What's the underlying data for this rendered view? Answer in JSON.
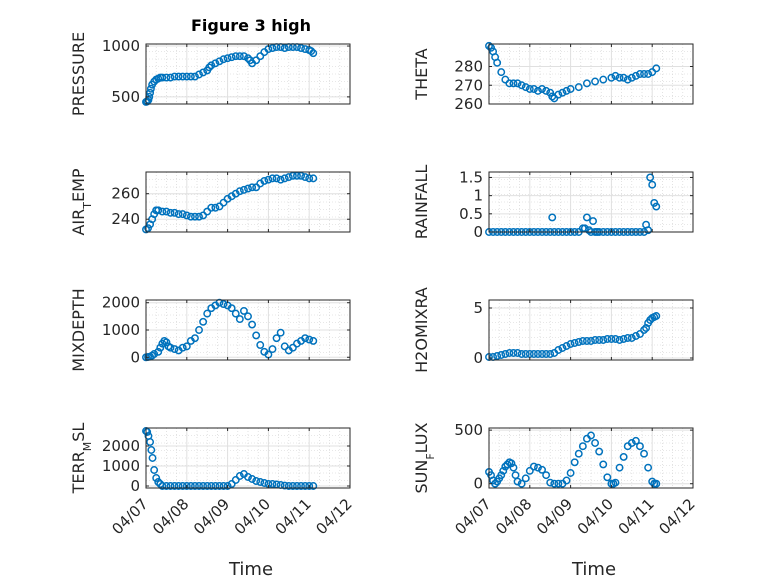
{
  "figure": {
    "title": "Figure 3 high",
    "marker_color": "#0072bd",
    "x_tick_labels": [
      "04/07",
      "04/08",
      "04/09",
      "04/10",
      "04/11",
      "04/12"
    ],
    "x_label": "Time"
  },
  "chart_data": [
    {
      "type": "scatter",
      "ylabel": "PRESSURE",
      "ylabel_html": "PRESSURE",
      "xlim": [
        0,
        5
      ],
      "ylim": [
        430,
        1020
      ],
      "yticks": [
        500,
        1000
      ],
      "ytick_labels": [
        "500",
        "1000"
      ],
      "series": [
        {
          "x": [
            0.0,
            0.03,
            0.06,
            0.08,
            0.1,
            0.12,
            0.15,
            0.2,
            0.25,
            0.3,
            0.35,
            0.4,
            0.5,
            0.6,
            0.7,
            0.8,
            0.9,
            1.0,
            1.1,
            1.2,
            1.3,
            1.4,
            1.5,
            1.55,
            1.6,
            1.7,
            1.8,
            1.9,
            2.0,
            2.1,
            2.2,
            2.3,
            2.4,
            2.5,
            2.55,
            2.6,
            2.7,
            2.8,
            2.9,
            3.0,
            3.1,
            3.2,
            3.3,
            3.4,
            3.5,
            3.6,
            3.7,
            3.8,
            3.9,
            4.0,
            4.05,
            4.1
          ],
          "y": [
            450,
            455,
            470,
            500,
            540,
            580,
            620,
            650,
            670,
            680,
            690,
            690,
            690,
            690,
            700,
            700,
            700,
            700,
            700,
            700,
            720,
            740,
            760,
            790,
            810,
            830,
            850,
            870,
            880,
            890,
            900,
            900,
            900,
            880,
            860,
            830,
            860,
            900,
            940,
            970,
            980,
            990,
            990,
            980,
            990,
            990,
            990,
            980,
            970,
            960,
            950,
            930
          ]
        }
      ]
    },
    {
      "type": "scatter",
      "ylabel": "THETA",
      "ylabel_html": "THETA",
      "xlim": [
        0,
        5
      ],
      "ylim": [
        260,
        292
      ],
      "yticks": [
        260,
        270,
        280
      ],
      "ytick_labels": [
        "260",
        "270",
        "280"
      ],
      "series": [
        {
          "x": [
            0.0,
            0.05,
            0.1,
            0.15,
            0.2,
            0.3,
            0.4,
            0.5,
            0.6,
            0.7,
            0.8,
            0.9,
            1.0,
            1.1,
            1.2,
            1.3,
            1.4,
            1.5,
            1.55,
            1.6,
            1.7,
            1.8,
            1.9,
            2.0,
            2.2,
            2.4,
            2.6,
            2.8,
            3.0,
            3.1,
            3.2,
            3.3,
            3.4,
            3.5,
            3.6,
            3.7,
            3.8,
            3.9,
            4.0,
            4.1
          ],
          "y": [
            291,
            290,
            288,
            285,
            282,
            277,
            273,
            271,
            271,
            271,
            270,
            269,
            268,
            268,
            267,
            268,
            267,
            266,
            264,
            263,
            265,
            266,
            267,
            268,
            269,
            271,
            272,
            273,
            274,
            275,
            274,
            274,
            273,
            274,
            275,
            276,
            276,
            276,
            277,
            279
          ]
        }
      ]
    },
    {
      "type": "scatter",
      "ylabel": "AIR_TEMP",
      "ylabel_html": "AIR<tspan baseline-shift=\"sub\" class=\"sub\">T</tspan>EMP",
      "xlim": [
        0,
        5
      ],
      "ylim": [
        230,
        277
      ],
      "yticks": [
        240,
        260
      ],
      "ytick_labels": [
        "240",
        "260"
      ],
      "series": [
        {
          "x": [
            0.0,
            0.05,
            0.1,
            0.15,
            0.2,
            0.25,
            0.3,
            0.4,
            0.5,
            0.6,
            0.7,
            0.8,
            0.9,
            1.0,
            1.1,
            1.2,
            1.3,
            1.4,
            1.5,
            1.6,
            1.7,
            1.8,
            1.9,
            2.0,
            2.1,
            2.2,
            2.3,
            2.4,
            2.5,
            2.6,
            2.7,
            2.8,
            2.9,
            3.0,
            3.1,
            3.2,
            3.3,
            3.4,
            3.5,
            3.6,
            3.7,
            3.8,
            3.9,
            4.0,
            4.1
          ],
          "y": [
            232,
            233,
            236,
            240,
            244,
            247,
            247,
            246,
            246,
            245,
            245,
            244,
            244,
            243,
            242,
            242,
            242,
            243,
            246,
            249,
            249,
            250,
            253,
            256,
            258,
            260,
            262,
            263,
            264,
            265,
            265,
            268,
            270,
            271,
            272,
            272,
            271,
            272,
            273,
            274,
            274,
            274,
            273,
            272,
            272
          ]
        }
      ]
    },
    {
      "type": "scatter",
      "ylabel": "RAINFALL",
      "ylabel_html": "RAINFALL",
      "xlim": [
        0,
        5
      ],
      "ylim": [
        0,
        1.65
      ],
      "yticks": [
        0,
        0.5,
        1,
        1.5
      ],
      "ytick_labels": [
        "0",
        "0.5",
        "1",
        "1.5"
      ],
      "series": [
        {
          "x": [
            0.0,
            0.1,
            0.2,
            0.3,
            0.4,
            0.5,
            0.6,
            0.7,
            0.8,
            0.9,
            1.0,
            1.1,
            1.2,
            1.3,
            1.4,
            1.5,
            1.55,
            1.6,
            1.7,
            1.8,
            1.9,
            2.0,
            2.1,
            2.2,
            2.3,
            2.35,
            2.4,
            2.45,
            2.5,
            2.55,
            2.6,
            2.65,
            2.7,
            2.8,
            2.9,
            3.0,
            3.1,
            3.2,
            3.3,
            3.4,
            3.5,
            3.6,
            3.7,
            3.8,
            3.85,
            3.9,
            3.95,
            4.0,
            4.05,
            4.1
          ],
          "y": [
            0,
            0,
            0,
            0,
            0,
            0,
            0,
            0,
            0,
            0,
            0,
            0,
            0,
            0,
            0,
            0,
            0.4,
            0,
            0,
            0,
            0,
            0,
            0,
            0,
            0.1,
            0.1,
            0.4,
            0.05,
            0,
            0.3,
            0,
            0,
            0,
            0,
            0,
            0,
            0,
            0,
            0,
            0,
            0,
            0,
            0,
            0,
            0.2,
            0.05,
            1.5,
            1.3,
            0.8,
            0.7
          ]
        }
      ]
    },
    {
      "type": "scatter",
      "ylabel": "MIXDEPTH",
      "ylabel_html": "MIXDEPTH",
      "xlim": [
        0,
        5
      ],
      "ylim": [
        -100,
        2100
      ],
      "yticks": [
        0,
        1000,
        2000
      ],
      "ytick_labels": [
        "0",
        "1000",
        "2000"
      ],
      "series": [
        {
          "x": [
            0.0,
            0.05,
            0.1,
            0.15,
            0.2,
            0.3,
            0.35,
            0.4,
            0.45,
            0.5,
            0.55,
            0.6,
            0.7,
            0.8,
            0.9,
            1.0,
            1.1,
            1.2,
            1.3,
            1.4,
            1.5,
            1.6,
            1.7,
            1.8,
            1.9,
            2.0,
            2.1,
            2.2,
            2.3,
            2.4,
            2.5,
            2.6,
            2.7,
            2.8,
            2.9,
            3.0,
            3.1,
            3.2,
            3.3,
            3.4,
            3.5,
            3.6,
            3.7,
            3.8,
            3.9,
            4.0,
            4.1
          ],
          "y": [
            0,
            10,
            20,
            60,
            120,
            200,
            350,
            500,
            600,
            550,
            400,
            350,
            300,
            250,
            350,
            400,
            600,
            700,
            1000,
            1300,
            1600,
            1800,
            1900,
            2000,
            1950,
            1900,
            1800,
            1600,
            1400,
            1700,
            1500,
            1200,
            800,
            450,
            200,
            100,
            300,
            700,
            900,
            400,
            250,
            350,
            500,
            600,
            700,
            650,
            600
          ]
        }
      ]
    },
    {
      "type": "scatter",
      "ylabel": "H2OMIXRA",
      "ylabel_html": "H2OMIXRA",
      "xlim": [
        0,
        5
      ],
      "ylim": [
        -0.2,
        5.8
      ],
      "yticks": [
        0,
        5
      ],
      "ytick_labels": [
        "0",
        "5"
      ],
      "series": [
        {
          "x": [
            0.0,
            0.1,
            0.2,
            0.3,
            0.4,
            0.5,
            0.6,
            0.7,
            0.8,
            0.9,
            1.0,
            1.1,
            1.2,
            1.3,
            1.4,
            1.5,
            1.6,
            1.7,
            1.8,
            1.9,
            2.0,
            2.1,
            2.2,
            2.3,
            2.4,
            2.5,
            2.6,
            2.7,
            2.8,
            2.9,
            3.0,
            3.1,
            3.2,
            3.3,
            3.4,
            3.5,
            3.6,
            3.7,
            3.8,
            3.85,
            3.9,
            3.95,
            4.0,
            4.05,
            4.1
          ],
          "y": [
            0.1,
            0.1,
            0.2,
            0.3,
            0.4,
            0.5,
            0.5,
            0.5,
            0.4,
            0.4,
            0.4,
            0.4,
            0.4,
            0.4,
            0.4,
            0.4,
            0.5,
            0.8,
            1.0,
            1.2,
            1.4,
            1.5,
            1.6,
            1.7,
            1.7,
            1.7,
            1.8,
            1.8,
            1.8,
            1.9,
            1.9,
            1.9,
            1.8,
            1.9,
            2.0,
            2.0,
            2.2,
            2.4,
            2.8,
            3.0,
            3.5,
            3.8,
            4.0,
            4.1,
            4.2
          ]
        }
      ]
    },
    {
      "type": "scatter",
      "ylabel": "TERR_MSL",
      "ylabel_html": "TERR<tspan baseline-shift=\"sub\" class=\"sub\">M</tspan>SL",
      "xlim": [
        0,
        5
      ],
      "ylim": [
        -100,
        2900
      ],
      "yticks": [
        0,
        1000,
        2000
      ],
      "ytick_labels": [
        "0",
        "1000",
        "2000"
      ],
      "series": [
        {
          "x": [
            0.0,
            0.03,
            0.06,
            0.1,
            0.13,
            0.16,
            0.2,
            0.25,
            0.3,
            0.35,
            0.4,
            0.5,
            0.6,
            0.7,
            0.8,
            0.9,
            1.0,
            1.1,
            1.2,
            1.3,
            1.4,
            1.5,
            1.6,
            1.7,
            1.8,
            1.9,
            2.0,
            2.1,
            2.2,
            2.3,
            2.4,
            2.5,
            2.6,
            2.7,
            2.8,
            2.9,
            3.0,
            3.1,
            3.2,
            3.3,
            3.4,
            3.5,
            3.6,
            3.7,
            3.8,
            3.9,
            4.0,
            4.1
          ],
          "y": [
            2750,
            2700,
            2500,
            2200,
            1800,
            1400,
            800,
            400,
            200,
            100,
            0,
            0,
            0,
            0,
            0,
            0,
            0,
            0,
            0,
            0,
            0,
            0,
            0,
            0,
            0,
            0,
            0,
            100,
            300,
            500,
            600,
            450,
            350,
            250,
            200,
            150,
            100,
            100,
            80,
            50,
            20,
            0,
            0,
            0,
            0,
            0,
            0,
            0
          ]
        }
      ]
    },
    {
      "type": "scatter",
      "ylabel": "SUN_FLUX",
      "ylabel_html": "SUN<tspan baseline-shift=\"sub\" class=\"sub\">F</tspan>LUX",
      "xlim": [
        0,
        5
      ],
      "ylim": [
        -40,
        520
      ],
      "yticks": [
        0,
        500
      ],
      "ytick_labels": [
        "0",
        "500"
      ],
      "series": [
        {
          "x": [
            0.0,
            0.05,
            0.1,
            0.15,
            0.2,
            0.25,
            0.3,
            0.35,
            0.4,
            0.45,
            0.5,
            0.55,
            0.6,
            0.65,
            0.7,
            0.8,
            0.9,
            1.0,
            1.1,
            1.2,
            1.3,
            1.4,
            1.5,
            1.6,
            1.7,
            1.8,
            1.9,
            2.0,
            2.1,
            2.2,
            2.3,
            2.4,
            2.5,
            2.6,
            2.7,
            2.8,
            2.9,
            3.0,
            3.05,
            3.1,
            3.2,
            3.3,
            3.4,
            3.5,
            3.6,
            3.7,
            3.8,
            3.9,
            4.0,
            4.05,
            4.1
          ],
          "y": [
            110,
            80,
            30,
            0,
            20,
            50,
            80,
            120,
            160,
            180,
            200,
            190,
            150,
            80,
            20,
            0,
            50,
            120,
            160,
            150,
            130,
            80,
            10,
            0,
            0,
            0,
            30,
            100,
            200,
            280,
            350,
            420,
            450,
            380,
            300,
            180,
            60,
            0,
            0,
            10,
            150,
            250,
            350,
            380,
            400,
            350,
            280,
            150,
            20,
            0,
            0
          ]
        }
      ]
    }
  ]
}
